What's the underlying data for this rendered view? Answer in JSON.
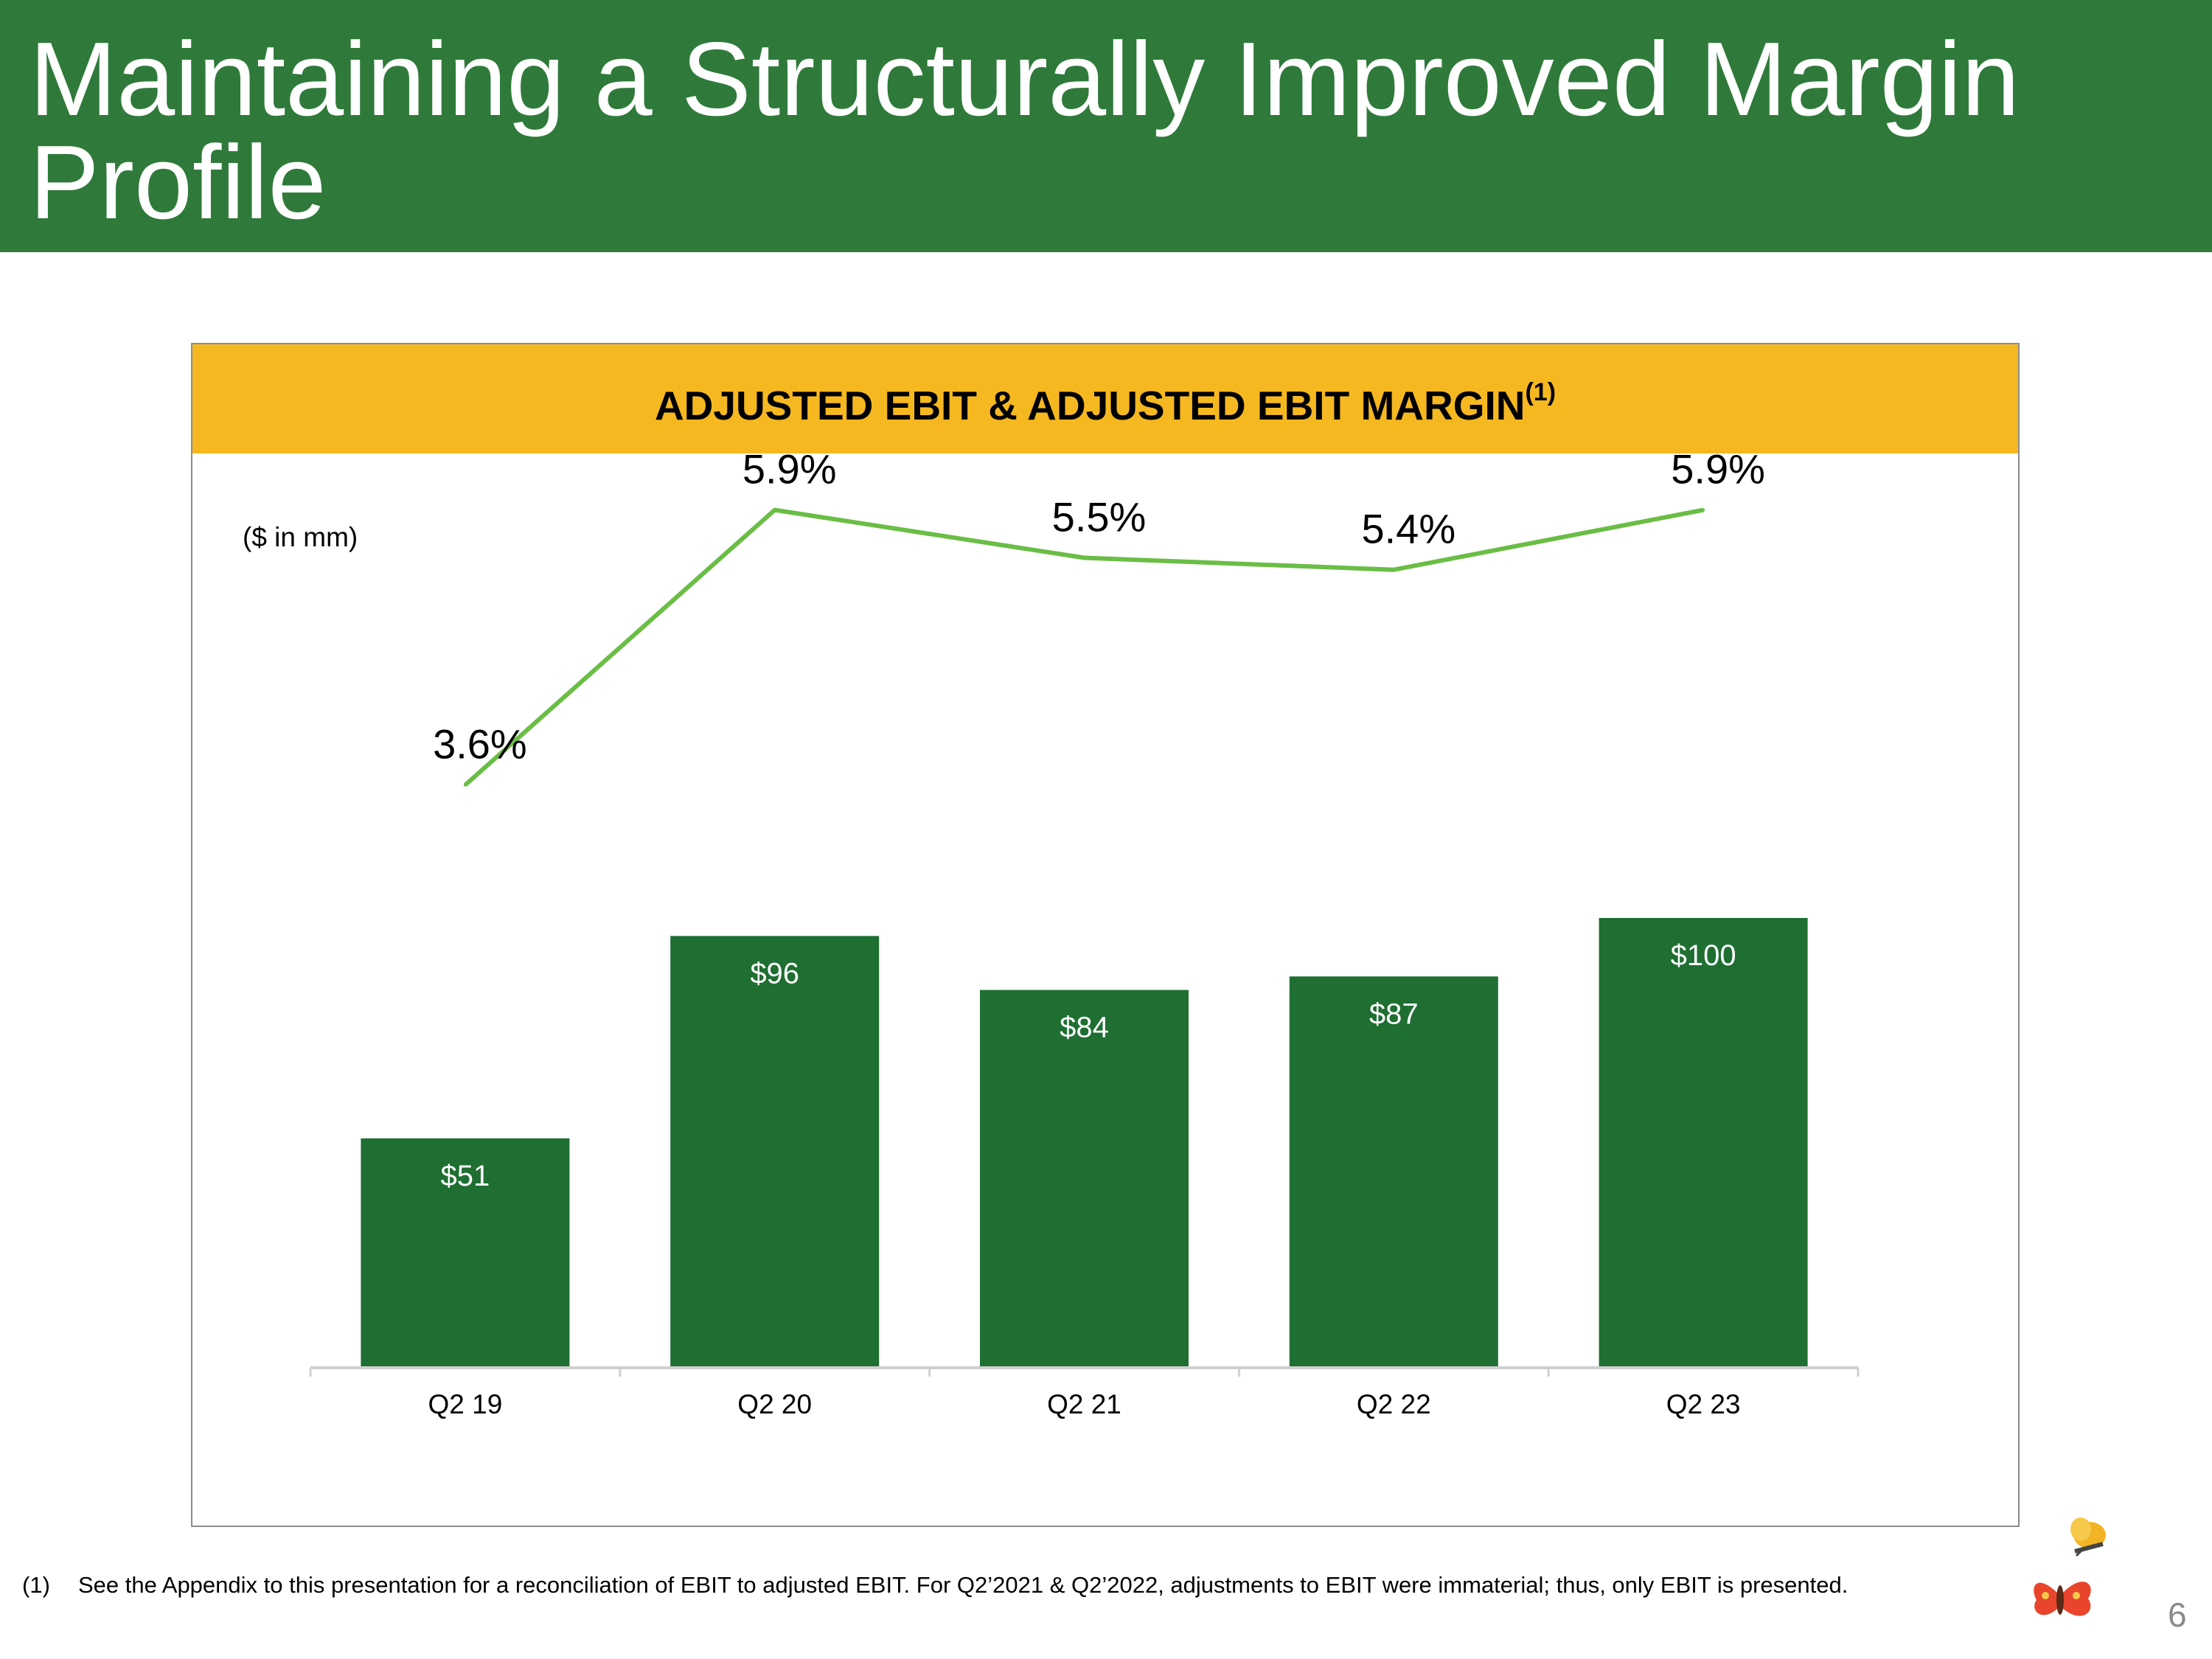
{
  "header": {
    "title": "Maintaining a Structurally Improved Margin Profile"
  },
  "chart_box": {
    "title": "ADJUSTED EBIT & ADJUSTED EBIT MARGIN",
    "title_sup": "(1)",
    "unit_note": "($ in mm)"
  },
  "chart_data": {
    "type": "bar",
    "title": "ADJUSTED EBIT & ADJUSTED EBIT MARGIN(1)",
    "categories": [
      "Q2 19",
      "Q2 20",
      "Q2 21",
      "Q2 22",
      "Q2 23"
    ],
    "series": [
      {
        "values": [
          51,
          96,
          84,
          87,
          100
        ],
        "labels": [
          "$51",
          "$96",
          "$84",
          "$87",
          "$100"
        ],
        "color": "#1e6f31"
      },
      {
        "type": "line",
        "values": [
          3.6,
          5.9,
          5.5,
          5.4,
          5.9
        ],
        "labels": [
          "3.6%",
          "5.9%",
          "5.5%",
          "5.4%",
          "5.9%"
        ],
        "color": "#6abd45"
      }
    ],
    "grid": false,
    "legend": "none"
  },
  "footnote": {
    "marker": "(1)",
    "text": "See the Appendix to this presentation for a reconciliation of EBIT to adjusted EBIT.  For Q2’2021 & Q2’2022, adjustments to EBIT were immaterial; thus, only EBIT is presented."
  },
  "page_number": "6",
  "colors": {
    "header": "#2f7a3a",
    "band": "#f6b820",
    "bar": "#1e6f31",
    "line": "#6abd45",
    "logo_butterfly": "#e8452c",
    "logo_bee": "#f2b424"
  },
  "logo": {
    "icons": [
      "butterfly-icon",
      "bee-icon"
    ]
  }
}
